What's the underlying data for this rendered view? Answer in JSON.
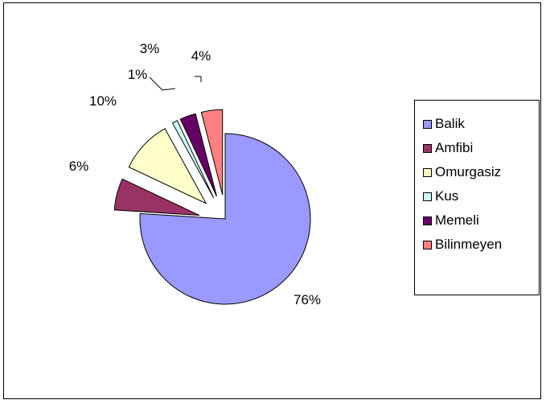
{
  "chart_data": {
    "type": "pie",
    "style": "exploded",
    "slices": [
      {
        "name": "Balik",
        "value": 76,
        "label": "76%",
        "color": "#9999ff"
      },
      {
        "name": "Amfibi",
        "value": 6,
        "label": "6%",
        "color": "#993366"
      },
      {
        "name": "Omurgasiz",
        "value": 10,
        "label": "10%",
        "color": "#ffffcc"
      },
      {
        "name": "Kus",
        "value": 1,
        "label": "1%",
        "color": "#ccffff"
      },
      {
        "name": "Memeli",
        "value": 3,
        "label": "3%",
        "color": "#660066"
      },
      {
        "name": "Bilinmeyen",
        "value": 4,
        "label": "4%",
        "color": "#ff8080"
      }
    ],
    "legend_position": "right"
  }
}
